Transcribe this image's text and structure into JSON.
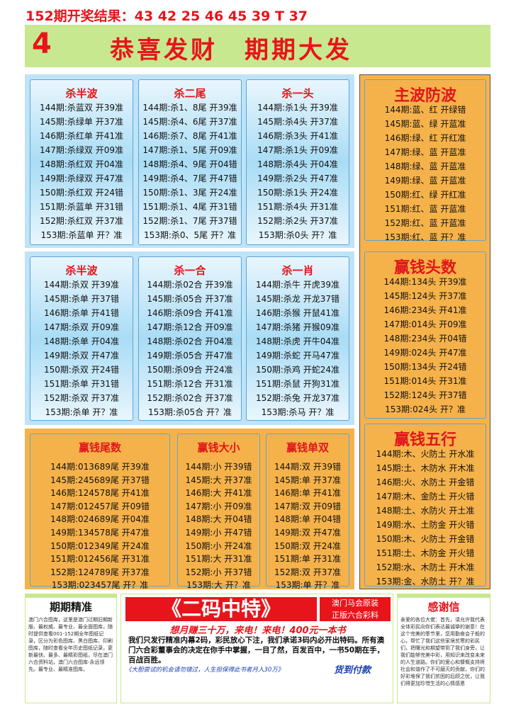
{
  "header": {
    "result": "152期开奖结果：43 42 25 46 45 39 T 37"
  },
  "banner": {
    "number": "4",
    "slogan": "恭喜发财　期期大发"
  },
  "panels": [
    {
      "title": "杀半波",
      "rows": [
        "144期:杀蓝双 开39准",
        "145期:杀绿单 开37准",
        "146期:杀红单 开41准",
        "147期:杀绿双 开09准",
        "148期:杀红双 开04准",
        "149期:杀绿双 开47准",
        "150期:杀红双 开24错",
        "151期:杀蓝单 开31错",
        "152期:杀红双 开37准",
        "153期:杀蓝单 开？准"
      ]
    },
    {
      "title": "杀二尾",
      "rows": [
        "144期:杀1、8尾 开39准",
        "145期:杀4、6尾 开37准",
        "146期:杀7、8尾 开41准",
        "147期:杀1、5尾 开09准",
        "148期:杀4、9尾 开04错",
        "149期:杀4、7尾 开47错",
        "150期:杀1、3尾 开24准",
        "151期:杀1、4尾 开31错",
        "152期:杀1、7尾 开37错",
        "153期:杀0、5尾 开？准"
      ]
    },
    {
      "title": "杀一头",
      "rows": [
        "144期:杀1头 开39准",
        "145期:杀4头 开37准",
        "146期:杀3头 开41准",
        "147期:杀1头 开09准",
        "148期:杀4头 开04准",
        "149期:杀2头 开47准",
        "150期:杀1头 开24准",
        "151期:杀4头 开31准",
        "152期:杀2头 开37准",
        "153期:杀0头 开？准"
      ]
    },
    {
      "title": "杀半波",
      "rows": [
        "144期:杀双 开39准",
        "145期:杀单 开37错",
        "146期:杀单 开41错",
        "147期:杀双 开09准",
        "148期:杀单 开04准",
        "149期:杀双 开47准",
        "150期:杀双 开24错",
        "151期:杀单 开31错",
        "152期:杀双 开37准",
        "153期:杀单 开？准"
      ]
    },
    {
      "title": "杀一合",
      "rows": [
        "144期:杀02合 开39准",
        "145期:杀05合 开37准",
        "146期:杀09合 开41准",
        "147期:杀12合 开09准",
        "148期:杀02合 开04准",
        "149期:杀05合 开47准",
        "150期:杀09合 开24准",
        "151期:杀12合 开31准",
        "152期:杀02合 开37准",
        "153期:杀05合 开？准"
      ]
    },
    {
      "title": "杀一肖",
      "rows": [
        "144期:杀牛 开虎39准",
        "145期:杀龙 开龙37错",
        "146期:杀猴 开鼠41准",
        "147期:杀猪 开猴09准",
        "148期:杀虎 开牛04准",
        "149期:杀蛇 开马47准",
        "150期:杀鸡 开蛇24准",
        "151期:杀鼠 开狗31准",
        "152期:杀兔 开龙37准",
        "153期:杀马 开？准"
      ]
    },
    {
      "title": "主波防波",
      "rows": [
        "144期:蓝、红 开绿错",
        "145期:蓝、绿 开蓝准",
        "146期:绿、红 开红准",
        "147期:绿、蓝 开蓝准",
        "148期:绿、蓝 开蓝准",
        "149期:绿、蓝 开蓝准",
        "150期:红、绿 开红准",
        "151期:红、蓝 开蓝准",
        "152期:红、蓝 开蓝准",
        "153期:红、蓝 开？准"
      ]
    },
    {
      "title": "赢钱头数",
      "rows": [
        "144期:134头 开39准",
        "145期:124头 开37准",
        "146期:234头 开41准",
        "147期:014头 开09准",
        "148期:234头 开04错",
        "149期:024头 开47准",
        "150期:134头 开24错",
        "151期:014头 开31准",
        "152期:124头 开37错",
        "153期:024头 开？准"
      ]
    },
    {
      "title": "赢钱五行",
      "rows": [
        "144期:木、火防土 开水准",
        "145期:土、木防水 开木准",
        "146期:火、水防土 开金错",
        "147期:木、金防土 开火错",
        "148期:土、水防火 开土准",
        "149期:水、土防金 开火错",
        "150期:木、火防土 开金错",
        "151期:土、木防金 开火错",
        "152期:水、木防土 开木准",
        "153期:金、水防土 开？准"
      ]
    },
    {
      "title": "赢钱尾数",
      "rows": [
        "144期:013689尾 开39准",
        "145期:245689尾 开37错",
        "146期:124578尾 开41准",
        "147期:012457尾 开09错",
        "148期:024689尾 开04准",
        "149期:134578尾 开47准",
        "150期:012349尾 开24准",
        "151期:012456尾 开31准",
        "152期:124789尾 开37准",
        "153期:023457尾 开？准"
      ]
    },
    {
      "title": "赢钱大小",
      "rows": [
        "144期:小 开39错",
        "145期:大 开37准",
        "146期:大 开41准",
        "147期:小 开09准",
        "148期:大 开04错",
        "149期:小 开47错",
        "150期:小 开24准",
        "151期:大 开31准",
        "152期:小 开37错",
        "153期:大 开？准"
      ]
    },
    {
      "title": "赢钱单双",
      "rows": [
        "144期:双 开39错",
        "145期:单 开37准",
        "146期:单 开41准",
        "147期:双 开09错",
        "148期:单 开04错",
        "149期:双 开47准",
        "150期:双 开24准",
        "151期:单 开31准",
        "152期:双 开37准",
        "153期:单 开？准"
      ]
    }
  ],
  "footer": {
    "left": {
      "title": "期期精准",
      "text": "澳门六合图库，这里是澳门过期旧期新版、最权威、最专业、最全面图库，随时提供查看001-152期全年图纸记录，区分为彩色图库、黑白图库、印刷图库，随时查看全年历史图纸记录，更新最快、最多、最精彩图纸，尽在澳门六合资料站，澳门六合图库-永远领先。最专业、最精准图库。"
    },
    "middle": {
      "title": "《二码中特》",
      "side1": "澳门马会原装",
      "side2": "正版六合彩料",
      "slogan": "想月赚三十万，来电！来电！400元一本书",
      "text": "我们只发行精准内幕2码，彩民放心下注，我们承诺3码内必开出特码。所有澳门六合彩董事会的决定在你手中掌握，一目了然，百发百中，一书50期在手，百战百胜。",
      "note": "《大胆尝试的机会请勿错过，人生担保得此书者月入30万》",
      "pay": "货到付款"
    },
    "right": {
      "title": "感谢信",
      "text": "亲爱的各位大佬：首先，请允许我代表全体彩民向你们表达最诚挚的谢意！在这个完美的季节里，您用勤奋会子般的心，帮忙了我们这些家境贫寒的彩民们，把曙光和期望带到了我们身旁，让我们能够完美中彩，用知识来改变未来的人生道路。你们的爱心和慷慨支持将社会和谐作了不可磨灭的贡献，你们的好彩堆保了我们贫困的后顾之忧，让我们得更加珍惜生活的心情感恩"
    }
  }
}
